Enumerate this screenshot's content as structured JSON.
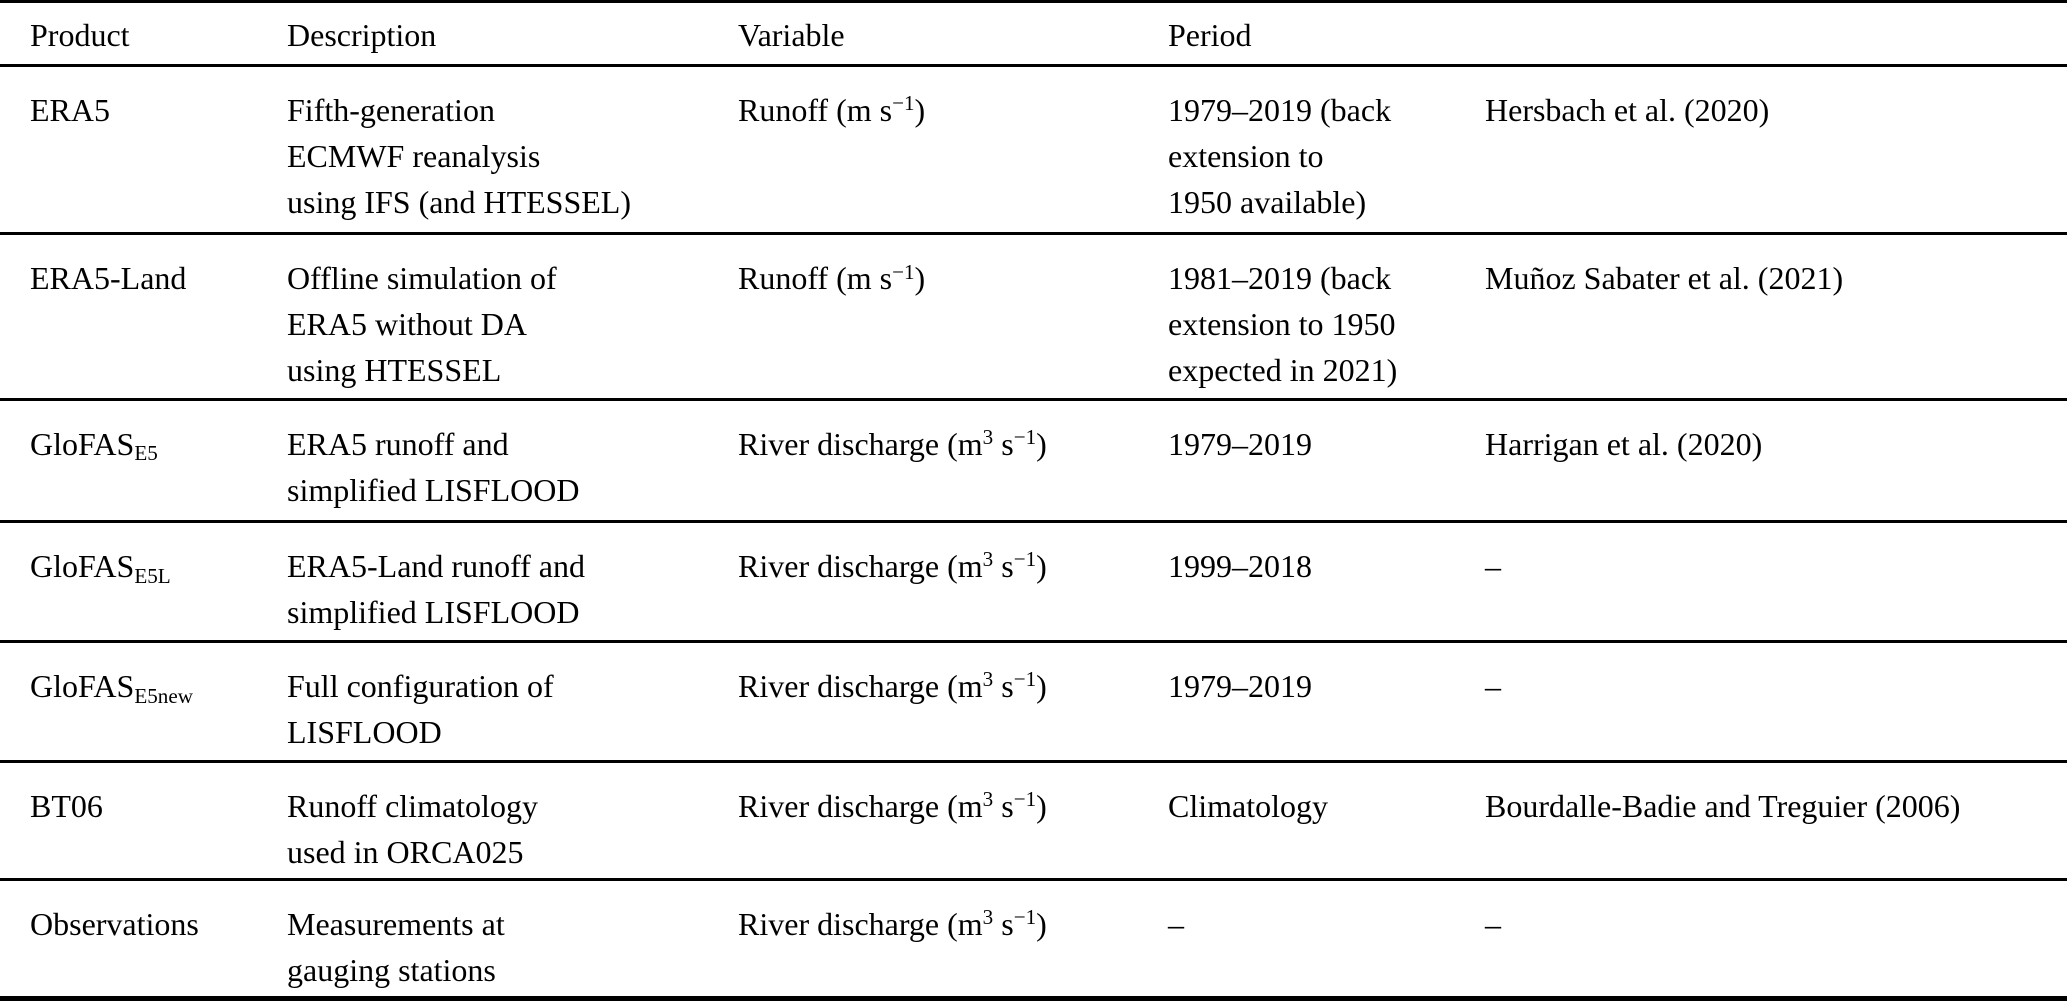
{
  "table": {
    "columns": [
      {
        "label": "Product"
      },
      {
        "label": "Description"
      },
      {
        "label": "Variable"
      },
      {
        "label": "Period"
      },
      {
        "label": ""
      }
    ],
    "rows": [
      {
        "product": "ERA5",
        "description": [
          "Fifth-generation",
          "ECMWF reanalysis",
          "using IFS (and HTESSEL)"
        ],
        "variable": "Runoff (m s^−1^)",
        "period": [
          "1979–2019 (back",
          "extension to",
          "1950 available)"
        ],
        "reference": "Hersbach et al. (2020)"
      },
      {
        "product": "ERA5-Land",
        "description": [
          "Offline simulation of",
          "ERA5 without DA",
          "using HTESSEL"
        ],
        "variable": "Runoff (m s^−1^)",
        "period": [
          "1981–2019 (back",
          "extension to 1950",
          "expected in 2021)"
        ],
        "reference": "Muñoz Sabater et al. (2021)"
      },
      {
        "product": "GloFAS~E5~",
        "description": [
          "ERA5 runoff and",
          "simplified LISFLOOD"
        ],
        "variable": "River discharge (m^3^ s^−1^)",
        "period": [
          "1979–2019"
        ],
        "reference": "Harrigan et al. (2020)"
      },
      {
        "product": "GloFAS~E5L~",
        "description": [
          "ERA5-Land runoff and",
          "simplified LISFLOOD"
        ],
        "variable": "River discharge (m^3^ s^−1^)",
        "period": [
          "1999–2018"
        ],
        "reference": "–"
      },
      {
        "product": "GloFAS~E5new~",
        "description": [
          "Full configuration of",
          "LISFLOOD"
        ],
        "variable": "River discharge (m^3^ s^−1^)",
        "period": [
          "1979–2019"
        ],
        "reference": "–"
      },
      {
        "product": "BT06",
        "description": [
          "Runoff climatology",
          "used in ORCA025"
        ],
        "variable": "River discharge (m^3^ s^−1^)",
        "period": [
          "Climatology"
        ],
        "reference": "Bourdalle-Badie and Treguier (2006)"
      },
      {
        "product": "Observations",
        "description": [
          "Measurements at",
          "gauging stations"
        ],
        "variable": "River discharge (m^3^ s^−1^)",
        "period": [
          "–"
        ],
        "reference": "–"
      }
    ]
  },
  "colors": {
    "text": "#000000",
    "background": "#ffffff",
    "rule": "#000000"
  }
}
